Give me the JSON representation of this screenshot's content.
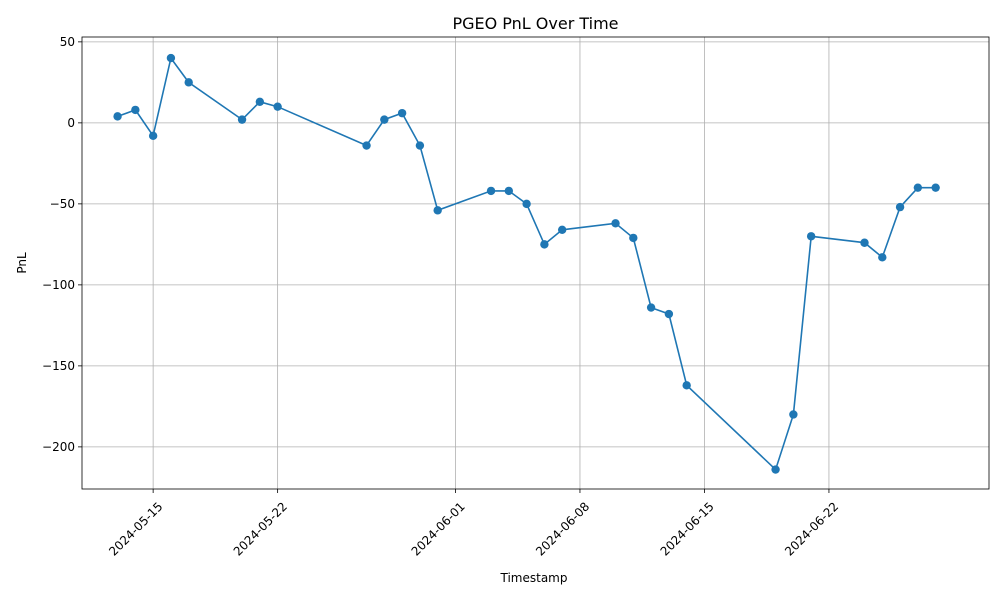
{
  "chart_data": {
    "type": "line",
    "title": "PGEO PnL Over Time",
    "xlabel": "Timestamp",
    "ylabel": "PnL",
    "x_tick_labels": [
      "2024-05-15",
      "2024-05-22",
      "2024-06-01",
      "2024-06-08",
      "2024-06-15",
      "2024-06-22"
    ],
    "x_tick_dates": [
      "2024-05-15",
      "2024-05-22",
      "2024-06-01",
      "2024-06-08",
      "2024-06-15",
      "2024-06-22"
    ],
    "y_tick_labels": [
      "50",
      "0",
      "−50",
      "−100",
      "−150",
      "−200"
    ],
    "y_tick_values": [
      50,
      0,
      -50,
      -100,
      -150,
      -200
    ],
    "xlim": [
      "2024-05-11",
      "2024-07-01"
    ],
    "ylim": [
      -226,
      53
    ],
    "grid": true,
    "line_color": "#1f77b4",
    "series": [
      {
        "x": [
          "2024-05-13",
          "2024-05-14",
          "2024-05-15",
          "2024-05-16",
          "2024-05-17",
          "2024-05-20",
          "2024-05-21",
          "2024-05-22",
          "2024-05-27",
          "2024-05-28",
          "2024-05-29",
          "2024-05-30",
          "2024-05-31",
          "2024-06-03",
          "2024-06-04",
          "2024-06-05",
          "2024-06-06",
          "2024-06-07",
          "2024-06-10",
          "2024-06-11",
          "2024-06-12",
          "2024-06-13",
          "2024-06-14",
          "2024-06-19",
          "2024-06-20",
          "2024-06-21",
          "2024-06-24",
          "2024-06-25",
          "2024-06-26",
          "2024-06-27",
          "2024-06-28"
        ],
        "values": [
          4,
          8,
          -8,
          40,
          25,
          2,
          13,
          10,
          -14,
          2,
          6,
          -14,
          -54,
          -42,
          -42,
          -50,
          -75,
          -66,
          -62,
          -71,
          -114,
          -118,
          -162,
          -214,
          -180,
          -70,
          -74,
          -83,
          -52,
          -40,
          -40
        ]
      }
    ]
  }
}
